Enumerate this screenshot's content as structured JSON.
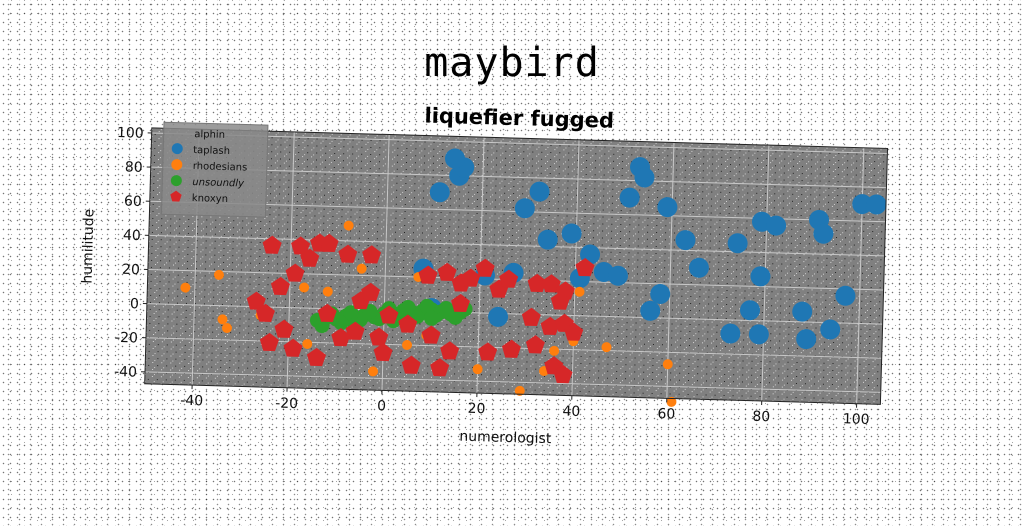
{
  "suptitle": "maybird",
  "chart_data": {
    "type": "scatter",
    "title": "liquefier fugged",
    "xlabel": "numerologist",
    "ylabel": "humilitude",
    "xlim": [
      -50,
      105
    ],
    "ylim": [
      -47,
      103
    ],
    "xticks": [
      -40,
      -20,
      0,
      20,
      40,
      60,
      80,
      100
    ],
    "yticks": [
      -40,
      -20,
      0,
      20,
      40,
      60,
      80,
      100
    ],
    "grid": true,
    "background": "#808080",
    "legend": {
      "title": "alphin",
      "location": "top-left"
    },
    "series": [
      {
        "name": "taplash",
        "color": "#1f77b4",
        "marker": "circle",
        "size": "large",
        "points": [
          [
            11,
            70
          ],
          [
            15,
            80
          ],
          [
            16,
            85
          ],
          [
            14,
            90
          ],
          [
            32,
            72
          ],
          [
            53,
            88
          ],
          [
            54,
            82
          ],
          [
            51,
            70
          ],
          [
            59,
            65
          ],
          [
            29,
            62
          ],
          [
            39,
            48
          ],
          [
            34,
            44
          ],
          [
            43,
            36
          ],
          [
            46,
            26
          ],
          [
            49,
            24
          ],
          [
            41,
            22
          ],
          [
            58,
            14
          ],
          [
            56,
            4
          ],
          [
            63,
            46
          ],
          [
            66,
            30
          ],
          [
            74,
            45
          ],
          [
            79,
            58
          ],
          [
            82,
            56
          ],
          [
            91,
            60
          ],
          [
            92,
            52
          ],
          [
            100,
            70
          ],
          [
            103,
            70
          ],
          [
            97,
            16
          ],
          [
            79,
            26
          ],
          [
            77,
            6
          ],
          [
            79,
            -8
          ],
          [
            88,
            6
          ],
          [
            89,
            -10
          ],
          [
            94,
            -4
          ],
          [
            73,
            -8
          ],
          [
            27,
            24
          ],
          [
            21,
            22
          ],
          [
            8,
            25
          ],
          [
            24,
            -2
          ],
          [
            10,
            2
          ]
        ]
      },
      {
        "name": "rhodesians",
        "color": "#ff7f0e",
        "marker": "circle",
        "size": "small",
        "points": [
          [
            -42,
            10
          ],
          [
            -35,
            18
          ],
          [
            -34,
            -8
          ],
          [
            -33,
            -13
          ],
          [
            -26,
            -5
          ],
          [
            -19,
            22
          ],
          [
            -17,
            12
          ],
          [
            -16,
            -21
          ],
          [
            -12,
            10
          ],
          [
            -8,
            49
          ],
          [
            -5,
            24
          ],
          [
            5,
            -20
          ],
          [
            7,
            20
          ],
          [
            20,
            -33
          ],
          [
            29,
            -45
          ],
          [
            34,
            -33
          ],
          [
            36,
            -21
          ],
          [
            40,
            -15
          ],
          [
            41,
            14
          ],
          [
            47,
            -18
          ],
          [
            60,
            -27
          ],
          [
            61,
            -49
          ],
          [
            -2,
            -36
          ],
          [
            9,
            -14
          ]
        ]
      },
      {
        "name": "unsoundly",
        "color": "#2ca02c",
        "marker": "circle",
        "size": "medium",
        "points": [
          [
            -14,
            -7
          ],
          [
            -12,
            -5
          ],
          [
            -10,
            -6
          ],
          [
            -8,
            -4
          ],
          [
            -6,
            -5
          ],
          [
            -4,
            -3
          ],
          [
            -2,
            -4
          ],
          [
            0,
            -2
          ],
          [
            2,
            -2
          ],
          [
            4,
            0
          ],
          [
            6,
            -1
          ],
          [
            8,
            0
          ],
          [
            10,
            1
          ],
          [
            12,
            0
          ],
          [
            14,
            -1
          ],
          [
            16,
            0
          ],
          [
            17,
            2
          ],
          [
            -13,
            -10
          ],
          [
            -9,
            -8
          ],
          [
            -5,
            -6
          ],
          [
            -1,
            -5
          ],
          [
            3,
            -4
          ],
          [
            7,
            -3
          ],
          [
            11,
            -2
          ],
          [
            15,
            -3
          ],
          [
            -11,
            -3
          ],
          [
            -7,
            -2
          ],
          [
            -3,
            -1
          ],
          [
            1,
            1
          ],
          [
            5,
            2
          ],
          [
            9,
            3
          ],
          [
            13,
            2
          ],
          [
            -6,
            -9
          ],
          [
            2,
            -6
          ],
          [
            10,
            -4
          ]
        ]
      },
      {
        "name": "knoxyn",
        "color": "#d62728",
        "marker": "pentagon",
        "size": "large",
        "points": [
          [
            -24,
            36
          ],
          [
            -18,
            36
          ],
          [
            -14,
            38
          ],
          [
            -12,
            38
          ],
          [
            -8,
            32
          ],
          [
            -3,
            32
          ],
          [
            -16,
            29
          ],
          [
            -19,
            20
          ],
          [
            -22,
            12
          ],
          [
            -27,
            3
          ],
          [
            -25,
            -4
          ],
          [
            -21,
            -13
          ],
          [
            -24,
            -21
          ],
          [
            -12,
            -3
          ],
          [
            -5,
            5
          ],
          [
            -6,
            -13
          ],
          [
            -1,
            -16
          ],
          [
            -3,
            10
          ],
          [
            1,
            -3
          ],
          [
            5,
            -8
          ],
          [
            9,
            21
          ],
          [
            13,
            23
          ],
          [
            16,
            17
          ],
          [
            18,
            20
          ],
          [
            21,
            26
          ],
          [
            24,
            14
          ],
          [
            26,
            20
          ],
          [
            32,
            18
          ],
          [
            35,
            18
          ],
          [
            38,
            14
          ],
          [
            37,
            8
          ],
          [
            42,
            28
          ],
          [
            31,
            -2
          ],
          [
            35,
            -7
          ],
          [
            38,
            -5
          ],
          [
            40,
            -10
          ],
          [
            27,
            -21
          ],
          [
            32,
            -18
          ],
          [
            36,
            -30
          ],
          [
            38,
            -35
          ],
          [
            22,
            -23
          ],
          [
            14,
            -23
          ],
          [
            10,
            -14
          ],
          [
            6,
            -32
          ],
          [
            12,
            -33
          ],
          [
            -19,
            -24
          ],
          [
            -14,
            -29
          ],
          [
            -9,
            -17
          ],
          [
            0,
            -25
          ],
          [
            16,
            5
          ]
        ]
      }
    ]
  }
}
